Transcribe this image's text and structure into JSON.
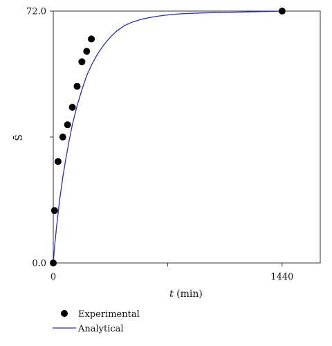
{
  "chart_data": {
    "type": "scatter",
    "xlabel_var": "t",
    "xlabel_unit": " (min)",
    "ylabel": "S̄",
    "xlim": [
      0,
      1680
    ],
    "ylim": [
      0,
      72
    ],
    "x_ticks": [
      {
        "value": 0,
        "label": "0"
      },
      {
        "value": 720,
        "label": ""
      },
      {
        "value": 1440,
        "label": "1440"
      }
    ],
    "y_ticks": [
      {
        "value": 0,
        "label": "0.0"
      },
      {
        "value": 36,
        "label": ""
      },
      {
        "value": 72,
        "label": "72.0"
      }
    ],
    "grid": false,
    "legend_position": "bottom-left",
    "series": [
      {
        "name": "Experimental",
        "kind": "points",
        "color": "#000000",
        "x": [
          0,
          8,
          30,
          60,
          90,
          120,
          150,
          180,
          210,
          240,
          1440
        ],
        "y": [
          0,
          15,
          29,
          36,
          39.5,
          44.5,
          50.5,
          57.5,
          60.5,
          64,
          72
        ]
      },
      {
        "name": "Analytical",
        "kind": "line",
        "color": "#2b2bb5",
        "x": [
          0,
          10,
          20,
          40,
          60,
          80,
          100,
          120,
          150,
          180,
          210,
          240,
          270,
          300,
          330,
          360,
          400,
          450,
          500,
          550,
          600,
          650,
          700,
          760,
          840,
          920,
          1000,
          1100,
          1200,
          1300,
          1440
        ],
        "y": [
          0,
          5.5,
          10,
          18,
          24.5,
          30,
          35,
          39.5,
          45,
          49.5,
          53.5,
          56.5,
          59,
          61.2,
          63,
          64.6,
          66.3,
          67.9,
          68.9,
          69.6,
          70.1,
          70.5,
          70.8,
          71.1,
          71.3,
          71.45,
          71.55,
          71.65,
          71.75,
          71.85,
          72
        ]
      }
    ]
  }
}
